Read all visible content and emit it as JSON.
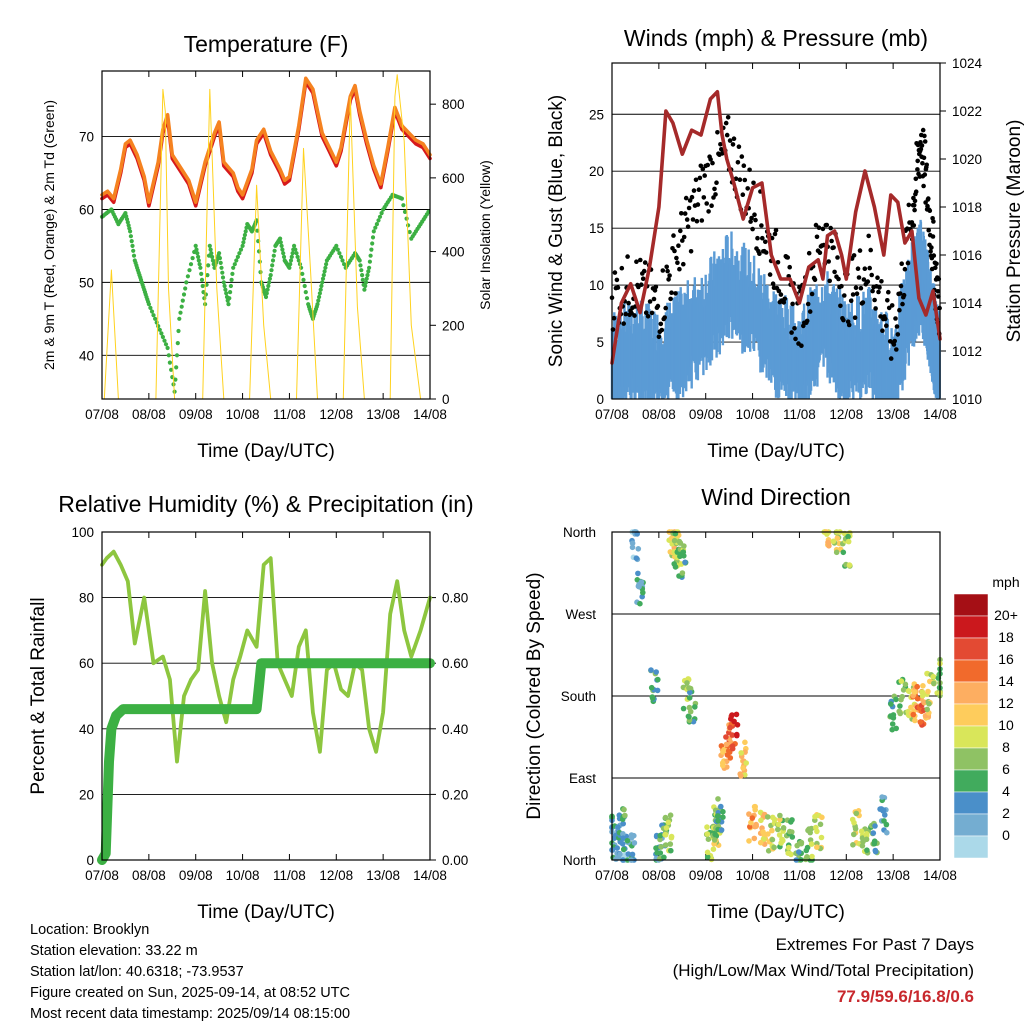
{
  "chart_data": [
    {
      "type": "line",
      "title": "Temperature (F)",
      "xlabel": "Time (Day/UTC)",
      "ylabel_left": "2m & 9m T (Red, Orange) & 2m Td (Green)",
      "ylabel_right": "Solar Insolation (Yellow)",
      "x_ticks": [
        "07/08",
        "08/08",
        "09/08",
        "10/08",
        "11/08",
        "12/08",
        "13/08",
        "14/08"
      ],
      "ylim_left": [
        34,
        79
      ],
      "yticks_left": [
        40,
        50,
        60,
        70
      ],
      "ylim_right": [
        0,
        890
      ],
      "yticks_right": [
        0,
        200,
        400,
        600,
        800
      ],
      "grid": "horizontal",
      "series": [
        {
          "color": "#d7191c",
          "axis": "left",
          "x": [
            0,
            0.12,
            0.25,
            0.4,
            0.5,
            0.6,
            0.75,
            0.9,
            1.0,
            1.2,
            1.3,
            1.4,
            1.5,
            1.7,
            1.85,
            2.0,
            2.2,
            2.4,
            2.5,
            2.6,
            2.8,
            2.9,
            3.0,
            3.2,
            3.3,
            3.45,
            3.6,
            3.8,
            3.9,
            4.0,
            4.2,
            4.35,
            4.5,
            4.6,
            4.7,
            4.85,
            5.0,
            5.1,
            5.3,
            5.4,
            5.5,
            5.65,
            5.8,
            5.95,
            6.1,
            6.25,
            6.4,
            6.55,
            6.7,
            6.85,
            7.0
          ],
          "values": [
            61.5,
            62,
            61,
            65,
            68.5,
            69,
            67,
            64,
            60.5,
            66,
            70.5,
            72.5,
            67,
            65,
            63.5,
            60.5,
            66,
            70,
            71.5,
            66,
            64.5,
            62.5,
            61.5,
            65,
            69,
            70.5,
            67.5,
            65,
            63.5,
            64,
            71,
            77.5,
            76,
            73,
            70,
            68,
            66,
            68,
            75,
            76.5,
            73,
            69,
            65.5,
            63,
            68,
            73.5,
            71,
            70,
            69,
            68.5,
            67
          ]
        },
        {
          "color": "#f58220",
          "axis": "left",
          "x": [
            0,
            0.12,
            0.25,
            0.4,
            0.5,
            0.6,
            0.75,
            0.9,
            1.0,
            1.2,
            1.3,
            1.4,
            1.5,
            1.7,
            1.85,
            2.0,
            2.2,
            2.4,
            2.5,
            2.6,
            2.8,
            2.9,
            3.0,
            3.2,
            3.3,
            3.45,
            3.6,
            3.8,
            3.9,
            4.0,
            4.2,
            4.35,
            4.5,
            4.6,
            4.7,
            4.85,
            5.0,
            5.1,
            5.3,
            5.4,
            5.5,
            5.65,
            5.8,
            5.95,
            6.1,
            6.25,
            6.4,
            6.55,
            6.7,
            6.85,
            7.0
          ],
          "values": [
            62,
            62.5,
            61.5,
            65.5,
            69,
            69.5,
            67.5,
            64.5,
            61,
            66.5,
            71,
            73,
            67.5,
            65.5,
            64,
            61,
            66.5,
            70.5,
            72,
            66.5,
            65,
            63,
            62,
            65.5,
            69.5,
            71,
            68,
            65.5,
            64,
            64.5,
            71.5,
            78,
            76.5,
            73.5,
            70.5,
            68.5,
            66.5,
            68.5,
            75.5,
            77,
            73.5,
            69.5,
            66,
            63.5,
            68.5,
            74,
            71.5,
            70.5,
            69.5,
            69,
            67.5
          ]
        },
        {
          "color": "#3cb043",
          "axis": "left",
          "dotted": true,
          "x": [
            0,
            0.2,
            0.35,
            0.5,
            0.6,
            0.7,
            0.8,
            0.9,
            1.0,
            1.2,
            1.4,
            1.55,
            1.65,
            1.8,
            2.0,
            2.1,
            2.2,
            2.3,
            2.4,
            2.5,
            2.6,
            2.7,
            2.8,
            3.0,
            3.1,
            3.2,
            3.3,
            3.4,
            3.5,
            3.6,
            3.7,
            3.8,
            3.9,
            4.0,
            4.1,
            4.25,
            4.4,
            4.5,
            4.6,
            4.7,
            4.8,
            5.0,
            5.2,
            5.4,
            5.5,
            5.6,
            5.7,
            5.8,
            6.0,
            6.2,
            6.4,
            6.6,
            6.8,
            7.0
          ],
          "values": [
            59,
            60,
            58,
            59.5,
            57,
            53,
            51,
            49,
            47,
            44,
            41,
            35,
            45,
            50,
            55,
            52,
            47,
            55,
            52,
            54,
            50,
            47,
            52,
            55,
            58,
            57,
            58.5,
            50,
            48,
            51,
            55,
            56,
            53,
            52,
            55,
            52,
            47,
            45,
            47,
            50,
            53,
            55,
            52,
            54,
            53,
            49,
            52,
            57,
            60,
            62,
            61.5,
            56,
            58,
            60
          ]
        },
        {
          "color": "#ffd21f",
          "axis": "right",
          "thin": true,
          "x": [
            0.05,
            0.2,
            0.35,
            0.5,
            0.65,
            0.85,
            1.0,
            1.15,
            1.3,
            1.35,
            1.42,
            1.55,
            1.7,
            1.85,
            2.0,
            2.15,
            2.3,
            2.45,
            2.6,
            2.8,
            3.0,
            3.15,
            3.3,
            3.45,
            3.6,
            3.8,
            4.0,
            4.15,
            4.3,
            4.45,
            4.6,
            4.8,
            5.0,
            5.15,
            5.3,
            5.45,
            5.6,
            5.8,
            6.0,
            6.15,
            6.25,
            6.3,
            6.45,
            6.6,
            6.8,
            7.0
          ],
          "values": [
            0,
            350,
            0,
            0,
            0,
            0,
            0,
            0,
            840,
            780,
            300,
            0,
            0,
            0,
            0,
            0,
            840,
            300,
            0,
            0,
            0,
            0,
            580,
            200,
            0,
            0,
            0,
            0,
            680,
            350,
            0,
            0,
            0,
            0,
            820,
            250,
            0,
            0,
            0,
            0,
            820,
            880,
            700,
            200,
            0,
            0
          ]
        }
      ]
    },
    {
      "type": "line",
      "title": "Winds (mph) & Pressure (mb)",
      "xlabel": "Time (Day/UTC)",
      "ylabel_left": "Sonic Wind & Gust (Blue, Black)",
      "ylabel_right": "Station Pressure (Maroon)",
      "x_ticks": [
        "07/08",
        "08/08",
        "09/08",
        "10/08",
        "11/08",
        "12/08",
        "13/08",
        "14/08"
      ],
      "ylim_left": [
        0,
        29.5
      ],
      "yticks_left": [
        0,
        5,
        10,
        15,
        20,
        25
      ],
      "ylim_right": [
        1010,
        1024
      ],
      "yticks_right": [
        1010,
        1012,
        1014,
        1016,
        1018,
        1020,
        1022,
        1024
      ],
      "grid": "horizontal",
      "series": [
        {
          "color": "#5b9bd5",
          "axis": "left",
          "x": [
            0,
            0.5,
            1.0,
            1.5,
            2.0,
            2.5,
            3.0,
            3.5,
            4.0,
            4.5,
            5.0,
            5.5,
            6.0,
            6.4,
            6.6,
            6.8,
            7.0
          ],
          "values": [
            4,
            5,
            4,
            6,
            8,
            11,
            9,
            6,
            4,
            8,
            5,
            6,
            3,
            10,
            12,
            8,
            4
          ]
        },
        {
          "color": "#000000",
          "axis": "left",
          "scatter": true,
          "x": [
            0,
            0.5,
            1.0,
            1.5,
            2.0,
            2.5,
            3.0,
            3.5,
            4.0,
            4.5,
            5.0,
            5.5,
            6.0,
            6.4,
            6.6,
            6.8,
            7.0
          ],
          "values": [
            9,
            10,
            8,
            14,
            19,
            22,
            17,
            12,
            7,
            15,
            9,
            12,
            5,
            16,
            23,
            15,
            7
          ]
        },
        {
          "color": "#a52a2a",
          "axis": "right",
          "x": [
            0,
            0.2,
            0.4,
            0.6,
            0.8,
            1.0,
            1.15,
            1.3,
            1.5,
            1.7,
            1.9,
            2.1,
            2.25,
            2.35,
            2.45,
            2.6,
            2.8,
            3.0,
            3.2,
            3.4,
            3.6,
            3.8,
            4.0,
            4.2,
            4.4,
            4.5,
            4.6,
            4.75,
            4.9,
            5.0,
            5.2,
            5.4,
            5.6,
            5.8,
            5.95,
            6.1,
            6.25,
            6.4,
            6.55,
            6.7,
            6.85,
            7.0
          ],
          "values": [
            1011.5,
            1014,
            1014.8,
            1013.6,
            1015.5,
            1018,
            1022,
            1021.5,
            1020.2,
            1021.2,
            1021,
            1022.5,
            1022.8,
            1021,
            1020,
            1019,
            1017.5,
            1018.8,
            1019,
            1016,
            1015,
            1015,
            1014,
            1015.5,
            1015.8,
            1015,
            1016.8,
            1017,
            1016,
            1015,
            1017.8,
            1019.5,
            1018,
            1016,
            1018.5,
            1018.2,
            1016.5,
            1017,
            1014.2,
            1013.5,
            1014.5,
            1012.5
          ]
        }
      ]
    },
    {
      "type": "line",
      "title": "Relative Humidity (%) & Precipitation (in)",
      "xlabel": "Time (Day/UTC)",
      "ylabel_left": "Percent & Total Rainfall",
      "ylim_left": [
        0,
        100
      ],
      "yticks_left": [
        0,
        20,
        40,
        60,
        80,
        100
      ],
      "ylim_right": [
        0,
        1.0
      ],
      "yticks_right": [
        "0.00",
        "0.20",
        "0.40",
        "0.60",
        "0.80"
      ],
      "x_ticks": [
        "07/08",
        "08/08",
        "09/08",
        "10/08",
        "11/08",
        "12/08",
        "13/08",
        "14/08"
      ],
      "grid": "horizontal",
      "series": [
        {
          "color": "#8dc63f",
          "axis": "left",
          "x": [
            0,
            0.1,
            0.25,
            0.4,
            0.55,
            0.7,
            0.9,
            1.1,
            1.3,
            1.45,
            1.6,
            1.75,
            1.9,
            2.05,
            2.2,
            2.35,
            2.5,
            2.65,
            2.8,
            2.95,
            3.1,
            3.3,
            3.45,
            3.6,
            3.75,
            3.9,
            4.05,
            4.2,
            4.35,
            4.5,
            4.65,
            4.8,
            4.95,
            5.1,
            5.25,
            5.4,
            5.55,
            5.7,
            5.85,
            6.0,
            6.15,
            6.3,
            6.45,
            6.6,
            6.8,
            7.0
          ],
          "values": [
            90,
            92,
            94,
            90,
            85,
            66,
            80,
            60,
            62,
            55,
            30,
            50,
            55,
            58,
            82,
            60,
            50,
            42,
            55,
            62,
            70,
            65,
            90,
            92,
            60,
            55,
            50,
            65,
            70,
            45,
            33,
            58,
            60,
            52,
            50,
            60,
            58,
            40,
            33,
            45,
            75,
            85,
            70,
            62,
            70,
            80
          ]
        },
        {
          "color": "#3cb043",
          "axis": "right",
          "thick": true,
          "x": [
            0,
            0.08,
            0.15,
            0.2,
            0.3,
            0.45,
            0.6,
            1.0,
            2.0,
            3.0,
            3.3,
            3.35,
            3.4,
            3.5,
            4.0,
            5.0,
            6.0,
            7.0
          ],
          "values": [
            0,
            0.02,
            0.3,
            0.4,
            0.44,
            0.46,
            0.46,
            0.46,
            0.46,
            0.46,
            0.46,
            0.53,
            0.6,
            0.6,
            0.6,
            0.6,
            0.6,
            0.6
          ]
        }
      ]
    },
    {
      "type": "scatter",
      "title": "Wind Direction",
      "xlabel": "Time (Day/UTC)",
      "ylabel": "Direction (Colored By Speed)",
      "y_ticks": [
        "North",
        "East",
        "South",
        "West",
        "North"
      ],
      "x_ticks": [
        "07/08",
        "08/08",
        "09/08",
        "10/08",
        "11/08",
        "12/08",
        "13/08",
        "14/08"
      ],
      "ylim": [
        0,
        360
      ],
      "grid": "horizontal",
      "legend": {
        "title": "mph",
        "labels": [
          "20+",
          "18",
          "16",
          "14",
          "12",
          "10",
          "8",
          "6",
          "4",
          "2",
          "0"
        ],
        "colors": [
          "#a50f15",
          "#cb181d",
          "#e34a33",
          "#f16a2c",
          "#fdae61",
          "#fecc5c",
          "#d9e65a",
          "#8fc264",
          "#41ab5d",
          "#4a8fc9",
          "#74add1",
          "#abd9e9"
        ]
      },
      "series": [
        {
          "name": "",
          "x": [
            0,
            0.1,
            0.2,
            0.3,
            0.4,
            0.5,
            0.6,
            0.9,
            1.0,
            1.1,
            1.2,
            1.3,
            1.35,
            1.4,
            1.5,
            1.6,
            1.7,
            2.1,
            2.2,
            2.25,
            2.3,
            2.4,
            2.5,
            2.6,
            2.8,
            3.0,
            3.2,
            3.4,
            3.6,
            3.8,
            4.0,
            4.2,
            4.4,
            4.6,
            4.8,
            5.0,
            5.2,
            5.4,
            5.6,
            5.8,
            6.0,
            6.2,
            6.4,
            6.5,
            6.6,
            6.7,
            6.8,
            7.0
          ],
          "values": [
            30,
            20,
            40,
            15,
            10,
            350,
            300,
            190,
            10,
            20,
            30,
            355,
            345,
            340,
            330,
            180,
            170,
            20,
            30,
            40,
            50,
            120,
            130,
            140,
            110,
            40,
            35,
            30,
            30,
            25,
            10,
            15,
            30,
            360,
            355,
            340,
            35,
            25,
            20,
            50,
            160,
            180,
            170,
            175,
            165,
            175,
            185,
            200
          ],
          "speeds": [
            4,
            3,
            5,
            3,
            4,
            3,
            4,
            6,
            4,
            6,
            8,
            12,
            10,
            8,
            7,
            9,
            6,
            8,
            10,
            8,
            6,
            14,
            16,
            18,
            12,
            14,
            12,
            10,
            9,
            8,
            6,
            8,
            10,
            12,
            10,
            8,
            10,
            8,
            6,
            4,
            6,
            8,
            10,
            14,
            16,
            12,
            10,
            8
          ]
        }
      ]
    }
  ],
  "info": {
    "location": "Location: Brooklyn",
    "elevation": "Station elevation: 33.22 m",
    "latlon": "Station lat/lon: 40.6318; -73.9537",
    "created": "Figure created on Sun, 2025-09-14, at 08:52 UTC",
    "recent": "Most recent data timestamp: 2025/09/14 08:15:00"
  },
  "extremes": {
    "title": "Extremes For Past 7 Days",
    "subtitle": "(High/Low/Max Wind/Total Precipitation)",
    "values": "77.9/59.6/16.8/0.6"
  }
}
